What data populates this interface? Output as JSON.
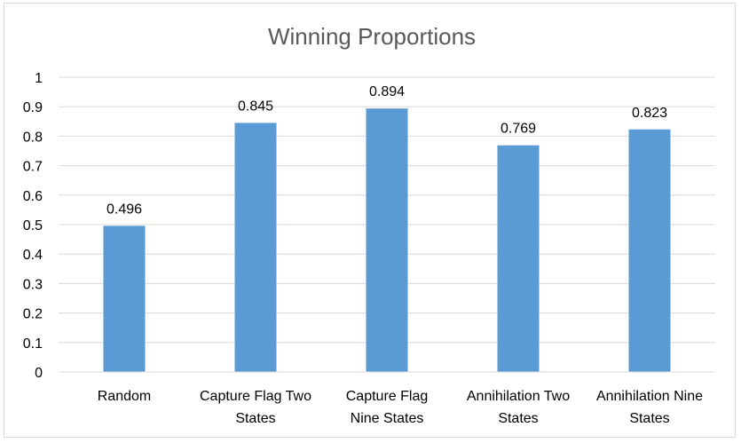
{
  "chart_data": {
    "type": "bar",
    "title": "Winning Proportions",
    "xlabel": "",
    "ylabel": "",
    "categories": [
      [
        "Random"
      ],
      [
        "Capture Flag Two",
        "States"
      ],
      [
        "Capture Flag",
        "Nine States"
      ],
      [
        "Annihilation Two",
        "States"
      ],
      [
        "Annihilation Nine",
        "States"
      ]
    ],
    "values": [
      0.496,
      0.845,
      0.894,
      0.769,
      0.823
    ],
    "data_labels": [
      "0.496",
      "0.845",
      "0.894",
      "0.769",
      "0.823"
    ],
    "ylim": [
      0,
      1
    ],
    "yticks": [
      "0",
      "0.1",
      "0.2",
      "0.3",
      "0.4",
      "0.5",
      "0.6",
      "0.7",
      "0.8",
      "0.9",
      "1"
    ],
    "grid": true,
    "legend": "none",
    "bar_color": "#5B9BD5"
  }
}
